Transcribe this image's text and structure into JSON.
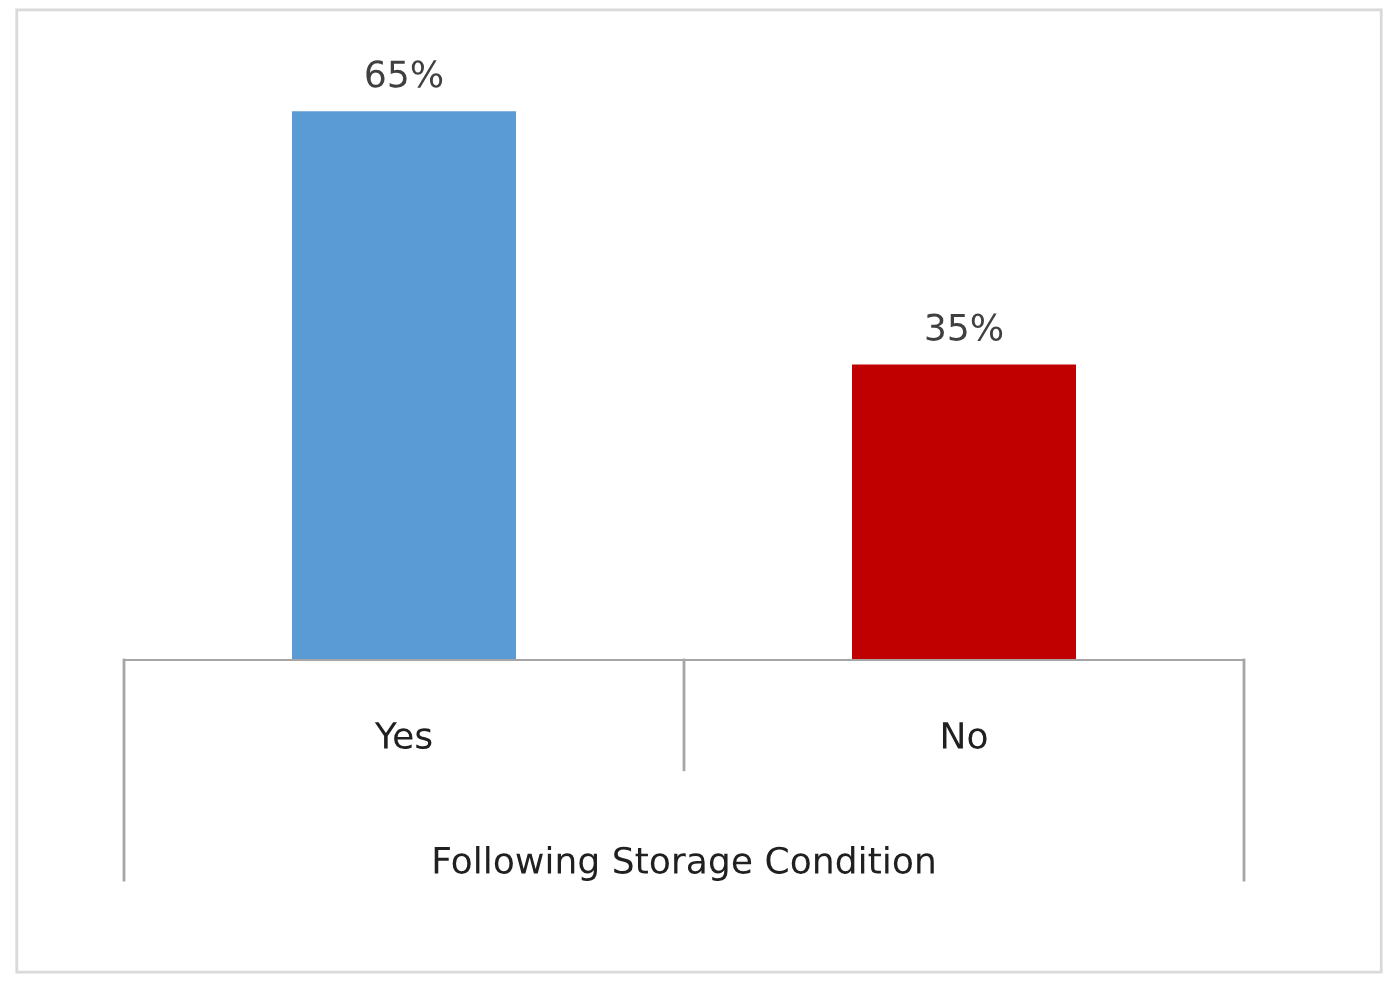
{
  "chart_data": {
    "type": "bar",
    "xlabel": "Following Storage Condition",
    "categories": [
      "Yes",
      "No"
    ],
    "values": [
      65,
      35
    ],
    "colors": [
      "#5b9bd5",
      "#c00000"
    ],
    "value_labels": [
      "65%",
      "35%"
    ],
    "grid": false,
    "legend": false
  }
}
